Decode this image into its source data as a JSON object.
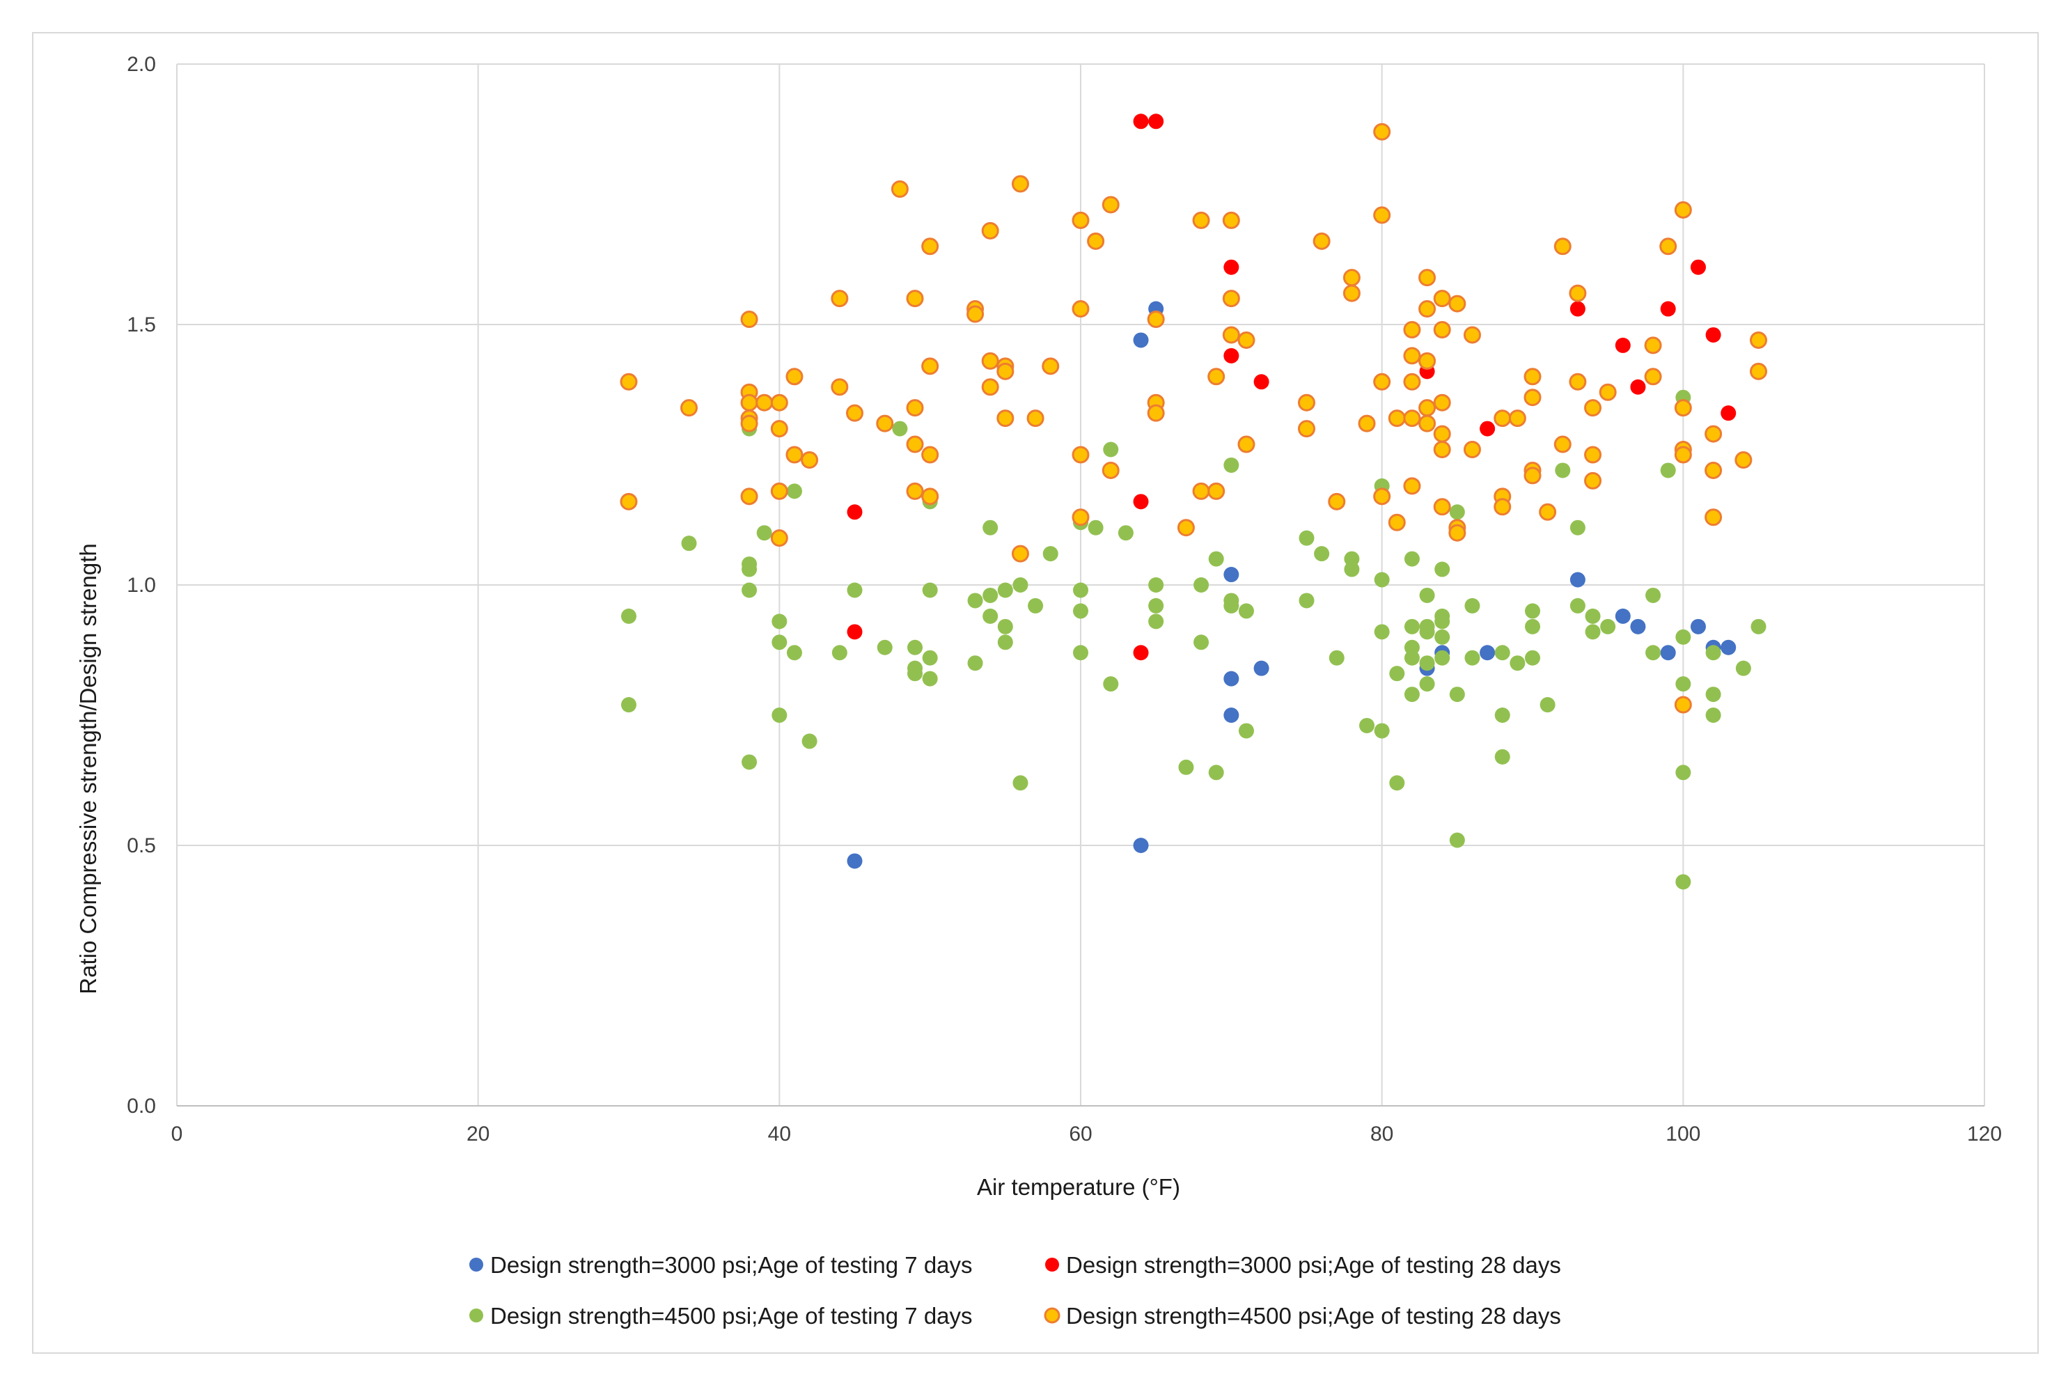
{
  "chart_data": {
    "type": "scatter",
    "title": "",
    "xlabel": "Air temperature (°F)",
    "ylabel": "Ratio Compressive strength/Design strength",
    "xlim": [
      0,
      120
    ],
    "ylim": [
      0,
      2.0
    ],
    "x_ticks": [
      0,
      20,
      40,
      60,
      80,
      100,
      120
    ],
    "y_ticks": [
      0.0,
      0.5,
      1.0,
      1.5,
      2.0
    ],
    "x_tick_labels": [
      "0",
      "20",
      "40",
      "60",
      "80",
      "100",
      "120"
    ],
    "y_tick_labels": [
      "0.0",
      "0.5",
      "1.0",
      "1.5",
      "2.0"
    ],
    "grid": true,
    "legend_position": "bottom",
    "series": [
      {
        "name": "Design strength=3000 psi;Age of testing 7 days",
        "color": "#4472c4",
        "outline": "#4472c4",
        "points": [
          [
            45,
            0.47
          ],
          [
            64,
            1.47
          ],
          [
            64,
            0.5
          ],
          [
            65,
            1.53
          ],
          [
            70,
            1.02
          ],
          [
            70,
            0.82
          ],
          [
            70,
            0.75
          ],
          [
            72,
            0.84
          ],
          [
            83,
            0.84
          ],
          [
            84,
            0.87
          ],
          [
            87,
            0.87
          ],
          [
            93,
            1.01
          ],
          [
            96,
            0.94
          ],
          [
            97,
            0.92
          ],
          [
            99,
            0.87
          ],
          [
            101,
            0.92
          ],
          [
            102,
            0.88
          ],
          [
            103,
            0.88
          ]
        ]
      },
      {
        "name": "Design strength=3000 psi;Age of testing 28 days",
        "color": "#ff0000",
        "outline": "#ff0000",
        "points": [
          [
            45,
            1.14
          ],
          [
            45,
            0.91
          ],
          [
            64,
            1.89
          ],
          [
            65,
            1.89
          ],
          [
            64,
            1.16
          ],
          [
            64,
            0.87
          ],
          [
            70,
            1.61
          ],
          [
            70,
            1.44
          ],
          [
            72,
            1.39
          ],
          [
            83,
            1.41
          ],
          [
            87,
            1.3
          ],
          [
            93,
            1.53
          ],
          [
            96,
            1.46
          ],
          [
            97,
            1.38
          ],
          [
            99,
            1.53
          ],
          [
            101,
            1.61
          ],
          [
            102,
            1.48
          ],
          [
            103,
            1.33
          ]
        ]
      },
      {
        "name": "Design strength=4500 psi;Age of testing 7 days",
        "color": "#92c050",
        "outline": "#92c050",
        "points": [
          [
            30,
            0.94
          ],
          [
            30,
            0.77
          ],
          [
            34,
            1.08
          ],
          [
            38,
            1.3
          ],
          [
            38,
            1.04
          ],
          [
            38,
            1.03
          ],
          [
            38,
            0.99
          ],
          [
            38,
            0.66
          ],
          [
            39,
            1.1
          ],
          [
            40,
            0.93
          ],
          [
            40,
            0.89
          ],
          [
            40,
            0.75
          ],
          [
            41,
            1.18
          ],
          [
            41,
            0.87
          ],
          [
            42,
            0.7
          ],
          [
            44,
            0.87
          ],
          [
            45,
            0.99
          ],
          [
            47,
            0.88
          ],
          [
            48,
            1.3
          ],
          [
            49,
            0.88
          ],
          [
            49,
            0.84
          ],
          [
            49,
            0.83
          ],
          [
            50,
            1.16
          ],
          [
            50,
            0.99
          ],
          [
            50,
            0.86
          ],
          [
            50,
            0.82
          ],
          [
            53,
            0.97
          ],
          [
            53,
            0.85
          ],
          [
            54,
            1.11
          ],
          [
            54,
            0.98
          ],
          [
            54,
            0.94
          ],
          [
            55,
            0.99
          ],
          [
            55,
            0.92
          ],
          [
            55,
            0.89
          ],
          [
            56,
            1.0
          ],
          [
            56,
            0.62
          ],
          [
            57,
            0.96
          ],
          [
            58,
            1.06
          ],
          [
            60,
            1.12
          ],
          [
            60,
            0.99
          ],
          [
            60,
            0.95
          ],
          [
            60,
            0.87
          ],
          [
            61,
            1.11
          ],
          [
            62,
            1.26
          ],
          [
            62,
            0.81
          ],
          [
            63,
            1.1
          ],
          [
            65,
            1.0
          ],
          [
            65,
            0.96
          ],
          [
            65,
            0.93
          ],
          [
            67,
            0.65
          ],
          [
            68,
            1.0
          ],
          [
            68,
            0.89
          ],
          [
            69,
            1.05
          ],
          [
            69,
            0.64
          ],
          [
            70,
            1.23
          ],
          [
            70,
            0.97
          ],
          [
            70,
            0.96
          ],
          [
            71,
            0.95
          ],
          [
            71,
            0.72
          ],
          [
            75,
            1.09
          ],
          [
            75,
            0.97
          ],
          [
            76,
            1.06
          ],
          [
            77,
            0.86
          ],
          [
            78,
            1.05
          ],
          [
            78,
            1.03
          ],
          [
            79,
            0.73
          ],
          [
            80,
            1.19
          ],
          [
            80,
            1.01
          ],
          [
            80,
            0.91
          ],
          [
            80,
            0.72
          ],
          [
            81,
            0.83
          ],
          [
            81,
            0.62
          ],
          [
            82,
            1.05
          ],
          [
            82,
            0.92
          ],
          [
            82,
            0.88
          ],
          [
            82,
            0.86
          ],
          [
            82,
            0.79
          ],
          [
            83,
            0.98
          ],
          [
            83,
            0.92
          ],
          [
            83,
            0.91
          ],
          [
            83,
            0.85
          ],
          [
            83,
            0.81
          ],
          [
            84,
            1.03
          ],
          [
            84,
            0.94
          ],
          [
            84,
            0.93
          ],
          [
            84,
            0.9
          ],
          [
            84,
            0.86
          ],
          [
            85,
            1.14
          ],
          [
            85,
            0.79
          ],
          [
            85,
            0.51
          ],
          [
            86,
            0.96
          ],
          [
            86,
            0.86
          ],
          [
            88,
            0.87
          ],
          [
            88,
            0.75
          ],
          [
            88,
            0.67
          ],
          [
            89,
            0.85
          ],
          [
            90,
            0.95
          ],
          [
            90,
            0.92
          ],
          [
            90,
            0.86
          ],
          [
            91,
            0.77
          ],
          [
            92,
            1.22
          ],
          [
            93,
            1.11
          ],
          [
            93,
            0.96
          ],
          [
            94,
            0.94
          ],
          [
            94,
            0.91
          ],
          [
            95,
            0.92
          ],
          [
            98,
            0.98
          ],
          [
            98,
            0.87
          ],
          [
            99,
            1.22
          ],
          [
            100,
            1.36
          ],
          [
            100,
            0.9
          ],
          [
            100,
            0.81
          ],
          [
            100,
            0.64
          ],
          [
            100,
            0.43
          ],
          [
            102,
            0.87
          ],
          [
            102,
            0.79
          ],
          [
            102,
            0.75
          ],
          [
            104,
            0.84
          ],
          [
            105,
            0.92
          ]
        ]
      },
      {
        "name": "Design strength=4500 psi;Age of testing 28 days",
        "color": "#ffc000",
        "outline": "#ed7d31",
        "points": [
          [
            30,
            1.39
          ],
          [
            30,
            1.16
          ],
          [
            34,
            1.34
          ],
          [
            38,
            1.51
          ],
          [
            38,
            1.37
          ],
          [
            38,
            1.35
          ],
          [
            38,
            1.32
          ],
          [
            38,
            1.31
          ],
          [
            38,
            1.17
          ],
          [
            39,
            1.35
          ],
          [
            40,
            1.35
          ],
          [
            40,
            1.3
          ],
          [
            40,
            1.18
          ],
          [
            40,
            1.09
          ],
          [
            41,
            1.4
          ],
          [
            41,
            1.25
          ],
          [
            42,
            1.24
          ],
          [
            44,
            1.55
          ],
          [
            44,
            1.38
          ],
          [
            45,
            1.33
          ],
          [
            47,
            1.31
          ],
          [
            48,
            1.76
          ],
          [
            49,
            1.55
          ],
          [
            49,
            1.34
          ],
          [
            49,
            1.27
          ],
          [
            49,
            1.18
          ],
          [
            50,
            1.65
          ],
          [
            50,
            1.42
          ],
          [
            50,
            1.25
          ],
          [
            50,
            1.17
          ],
          [
            53,
            1.53
          ],
          [
            53,
            1.52
          ],
          [
            54,
            1.68
          ],
          [
            54,
            1.43
          ],
          [
            54,
            1.38
          ],
          [
            55,
            1.42
          ],
          [
            55,
            1.41
          ],
          [
            55,
            1.32
          ],
          [
            56,
            1.77
          ],
          [
            56,
            1.06
          ],
          [
            57,
            1.32
          ],
          [
            58,
            1.42
          ],
          [
            60,
            1.7
          ],
          [
            60,
            1.53
          ],
          [
            60,
            1.25
          ],
          [
            60,
            1.13
          ],
          [
            61,
            1.66
          ],
          [
            62,
            1.73
          ],
          [
            62,
            1.22
          ],
          [
            65,
            1.51
          ],
          [
            65,
            1.35
          ],
          [
            65,
            1.33
          ],
          [
            67,
            1.11
          ],
          [
            68,
            1.7
          ],
          [
            68,
            1.18
          ],
          [
            69,
            1.4
          ],
          [
            69,
            1.18
          ],
          [
            70,
            1.7
          ],
          [
            70,
            1.55
          ],
          [
            70,
            1.48
          ],
          [
            71,
            1.47
          ],
          [
            71,
            1.27
          ],
          [
            75,
            1.35
          ],
          [
            75,
            1.3
          ],
          [
            76,
            1.66
          ],
          [
            77,
            1.16
          ],
          [
            78,
            1.59
          ],
          [
            78,
            1.56
          ],
          [
            79,
            1.31
          ],
          [
            80,
            1.87
          ],
          [
            80,
            1.71
          ],
          [
            80,
            1.39
          ],
          [
            80,
            1.17
          ],
          [
            81,
            1.32
          ],
          [
            81,
            1.12
          ],
          [
            82,
            1.49
          ],
          [
            82,
            1.44
          ],
          [
            82,
            1.39
          ],
          [
            82,
            1.32
          ],
          [
            82,
            1.19
          ],
          [
            83,
            1.59
          ],
          [
            83,
            1.53
          ],
          [
            83,
            1.43
          ],
          [
            83,
            1.34
          ],
          [
            83,
            1.31
          ],
          [
            84,
            1.55
          ],
          [
            84,
            1.49
          ],
          [
            84,
            1.35
          ],
          [
            84,
            1.29
          ],
          [
            84,
            1.26
          ],
          [
            84,
            1.15
          ],
          [
            85,
            1.54
          ],
          [
            85,
            1.11
          ],
          [
            85,
            1.1
          ],
          [
            86,
            1.48
          ],
          [
            86,
            1.26
          ],
          [
            88,
            1.32
          ],
          [
            88,
            1.17
          ],
          [
            88,
            1.15
          ],
          [
            89,
            1.32
          ],
          [
            90,
            1.4
          ],
          [
            90,
            1.36
          ],
          [
            90,
            1.22
          ],
          [
            90,
            1.21
          ],
          [
            91,
            1.14
          ],
          [
            92,
            1.65
          ],
          [
            92,
            1.27
          ],
          [
            93,
            1.56
          ],
          [
            93,
            1.39
          ],
          [
            94,
            1.34
          ],
          [
            94,
            1.25
          ],
          [
            94,
            1.2
          ],
          [
            95,
            1.37
          ],
          [
            98,
            1.46
          ],
          [
            98,
            1.4
          ],
          [
            99,
            1.65
          ],
          [
            100,
            1.72
          ],
          [
            100,
            1.34
          ],
          [
            100,
            1.26
          ],
          [
            100,
            1.25
          ],
          [
            100,
            0.77
          ],
          [
            102,
            1.29
          ],
          [
            102,
            1.22
          ],
          [
            102,
            1.13
          ],
          [
            104,
            1.24
          ],
          [
            105,
            1.47
          ],
          [
            105,
            1.41
          ]
        ]
      }
    ]
  }
}
